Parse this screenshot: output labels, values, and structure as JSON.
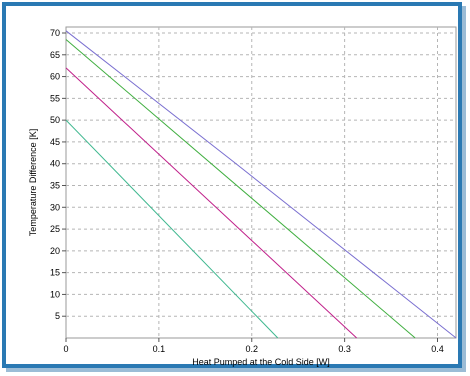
{
  "chart_data": {
    "type": "line",
    "title": "",
    "xlabel": "Heat Pumped at the Cold Side [W]",
    "ylabel": "Temperature Difference [K]",
    "xlim": [
      0,
      0.42
    ],
    "ylim": [
      0,
      72
    ],
    "x_ticks": [
      "0",
      "0.1",
      "0.2",
      "0.3",
      "0.4"
    ],
    "y_ticks": [
      "5",
      "10",
      "15",
      "20",
      "25",
      "30",
      "35",
      "40",
      "45",
      "50",
      "55",
      "60",
      "65",
      "70"
    ],
    "grid": true,
    "legend": "none",
    "series": [
      {
        "color": "#7a6fd0",
        "points": [
          [
            0,
            70.5
          ],
          [
            0.18,
            40.5
          ],
          [
            0.42,
            0
          ]
        ]
      },
      {
        "color": "#3fae3f",
        "points": [
          [
            0,
            68.5
          ],
          [
            0.376,
            0
          ]
        ]
      },
      {
        "color": "#c0208a",
        "points": [
          [
            0,
            62
          ],
          [
            0.313,
            0
          ]
        ]
      },
      {
        "color": "#40b890",
        "points": [
          [
            0,
            50
          ],
          [
            0.228,
            0
          ]
        ]
      }
    ]
  }
}
